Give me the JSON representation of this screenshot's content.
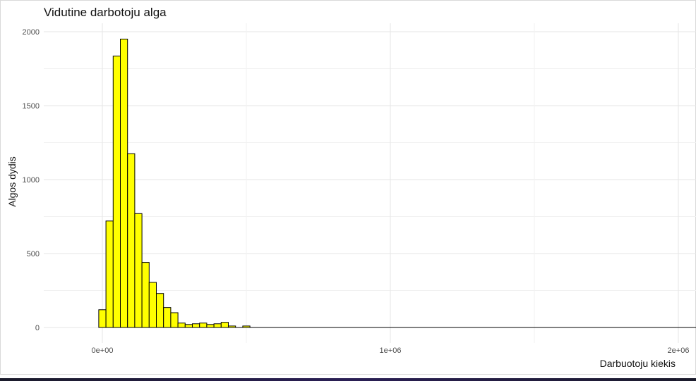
{
  "chart_data": {
    "type": "bar",
    "subtype": "histogram",
    "title": "Vidutine darbotoju alga",
    "xlabel": "Darbuotoju kiekis",
    "ylabel": "Algos dydis",
    "bin_width": 25000,
    "bin_centers": [
      0,
      25000,
      50000,
      75000,
      100000,
      125000,
      150000,
      175000,
      200000,
      225000,
      250000,
      275000,
      300000,
      325000,
      350000,
      375000,
      400000,
      425000,
      450000,
      475000,
      500000
    ],
    "values": [
      120,
      720,
      1835,
      1950,
      1175,
      770,
      440,
      305,
      230,
      135,
      100,
      30,
      20,
      25,
      30,
      20,
      25,
      35,
      10,
      0,
      10
    ],
    "xlim": [
      -200000,
      2050000
    ],
    "ylim": [
      0,
      2100
    ],
    "x_ticks": [
      0,
      1000000,
      2000000
    ],
    "x_tick_labels": [
      "0e+00",
      "1e+06",
      "2e+06"
    ],
    "y_ticks": [
      0,
      500,
      1000,
      1500,
      2000
    ],
    "y_tick_labels": [
      "0",
      "500",
      "1000",
      "1500",
      "2000"
    ],
    "bar_fill": "#ffff00",
    "bar_outline": "#000000",
    "grid": true,
    "theme": "minimal"
  }
}
